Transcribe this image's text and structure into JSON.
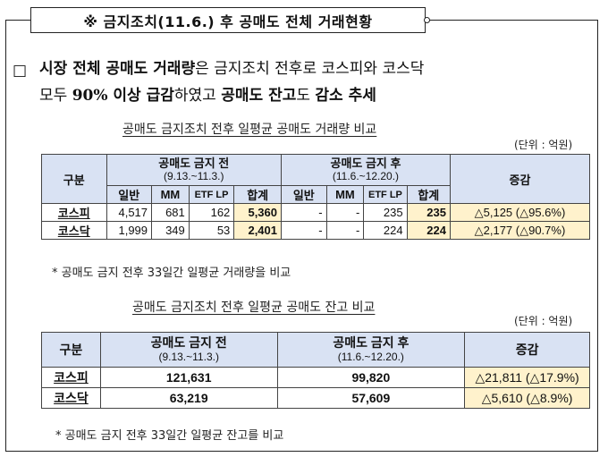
{
  "section_title": "※ 금지조치(11.6.) 후 공매도 전체 거래현황",
  "bullet": {
    "marker": "□",
    "line1_bold_a": "시장 전체 공매도 거래량",
    "line1_normal_a": "은 금지조치 전후로 코스피와 코스닥",
    "line2_normal_a": "모두 ",
    "line2_bold_a": "90% 이상 급감",
    "line2_normal_b": "하였고 ",
    "line2_bold_b": "공매도 잔고",
    "line2_normal_c": "도 ",
    "line2_bold_c": "감소 추세"
  },
  "table1": {
    "title": "공매도 금지조치 전후 일평균 공매도 거래량 비교",
    "unit": "(단위 : 억원)",
    "col_group": "구분",
    "before": {
      "label": "공매도 금지 전",
      "period": "(9.13.~11.3.)"
    },
    "after": {
      "label": "공매도 금지 후",
      "period": "(11.6.~12.20.)"
    },
    "change": "증감",
    "subcols": [
      "일반",
      "MM",
      "ETF LP",
      "합계"
    ],
    "rows": [
      {
        "name": "코스피",
        "b": [
          "4,517",
          "681",
          "162",
          "5,360"
        ],
        "a": [
          "-",
          "-",
          "235",
          "235"
        ],
        "diff": "△5,125 (△95.6%)"
      },
      {
        "name": "코스닥",
        "b": [
          "1,999",
          "349",
          "53",
          "2,401"
        ],
        "a": [
          "-",
          "-",
          "224",
          "224"
        ],
        "diff": "△2,177 (△90.7%)"
      }
    ],
    "note": "* 공매도 금지 전후 33일간 일평균 거래량을 비교"
  },
  "table2": {
    "title": "공매도 금지조치 전후 일평균 공매도 잔고 비교",
    "unit": "(단위 : 억원)",
    "col_group": "구분",
    "before": {
      "label": "공매도 금지 전",
      "period": "(9.13.~11.3.)"
    },
    "after": {
      "label": "공매도 금지 후",
      "period": "(11.6.~12.20.)"
    },
    "change": "증감",
    "rows": [
      {
        "name": "코스피",
        "before": "121,631",
        "after": "99,820",
        "diff": "△21,811 (△17.9%)"
      },
      {
        "name": "코스닥",
        "before": "63,219",
        "after": "57,609",
        "diff": "△5,610 (△8.9%)"
      }
    ],
    "note": "* 공매도 금지 전후 33일간 일평균 잔고를 비교"
  }
}
